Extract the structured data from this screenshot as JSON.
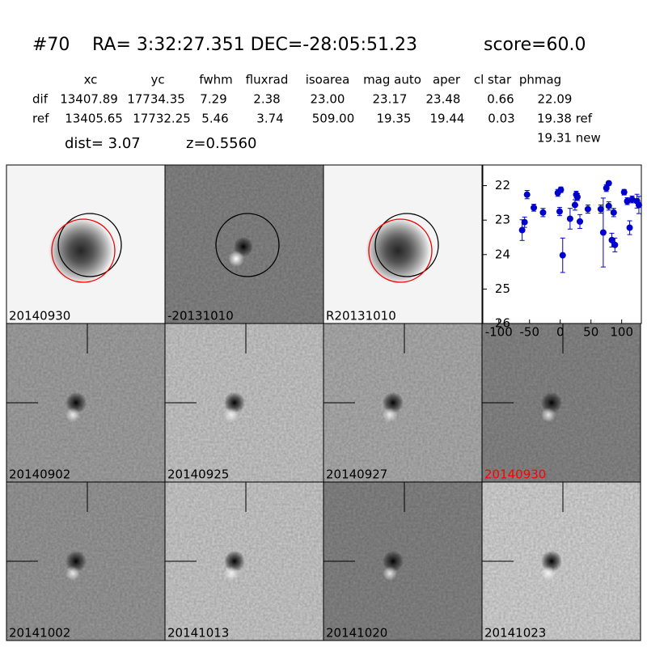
{
  "header": {
    "id": "#70",
    "coords": "RA= 3:32:27.351 DEC=-28:05:51.23",
    "score": "score=60.0"
  },
  "table": {
    "columns": [
      "xc",
      "yc",
      "fwhm",
      "fluxrad",
      "isoarea",
      "mag auto",
      "aper",
      "cl star",
      "phmag"
    ],
    "rows": [
      [
        "dif",
        "13407.89",
        "17734.35",
        "7.29",
        "2.38",
        "23.00",
        "23.17",
        "23.48",
        "0.66",
        "22.09"
      ],
      [
        "ref",
        "13405.65",
        "17732.25",
        "5.46",
        "3.74",
        "509.00",
        "19.35",
        "19.44",
        "0.03",
        "19.38 ref"
      ]
    ],
    "extra": "19.31 new"
  },
  "dist": "dist=  3.07",
  "z": "z=0.5560",
  "panels": [
    {
      "label": "20140930"
    },
    {
      "label": "-20131010"
    },
    {
      "label": "R20131010"
    },
    {
      "label": "20140902"
    },
    {
      "label": "20140925"
    },
    {
      "label": "20140927"
    },
    {
      "label": "20140930",
      "color": "#ff0000"
    },
    {
      "label": "20141002"
    },
    {
      "label": "20141013"
    },
    {
      "label": "20141020"
    },
    {
      "label": "20141023"
    }
  ],
  "chart_data": {
    "type": "scatter",
    "color": "#0000cc",
    "x": [
      -62,
      -58,
      -54,
      -43,
      -28,
      -4,
      1,
      -1,
      4,
      16,
      24,
      26,
      28,
      32,
      45,
      66,
      70,
      75,
      79,
      79,
      84,
      87,
      89,
      104,
      109,
      113,
      117,
      125,
      128
    ],
    "values": [
      23.29,
      23.06,
      22.26,
      22.64,
      22.78,
      22.21,
      22.12,
      22.75,
      24.02,
      22.96,
      22.56,
      22.26,
      22.33,
      23.04,
      22.68,
      22.68,
      23.36,
      22.07,
      21.93,
      22.59,
      23.58,
      22.78,
      23.72,
      22.19,
      22.45,
      23.22,
      22.4,
      22.45,
      22.56
    ],
    "errors": [
      0.3,
      0.15,
      0.12,
      0.1,
      0.12,
      0.1,
      0.08,
      0.12,
      0.5,
      0.3,
      0.15,
      0.1,
      0.1,
      0.2,
      0.12,
      0.12,
      1.0,
      0.1,
      0.06,
      0.12,
      0.2,
      0.12,
      0.2,
      0.08,
      0.1,
      0.2,
      0.1,
      0.2,
      0.25
    ],
    "xlim": [
      -126,
      132
    ],
    "ylim": [
      26,
      21.4
    ],
    "xticks": [
      -100,
      -50,
      0,
      50,
      100
    ],
    "yticks": [
      22,
      23,
      24,
      25,
      26
    ]
  }
}
